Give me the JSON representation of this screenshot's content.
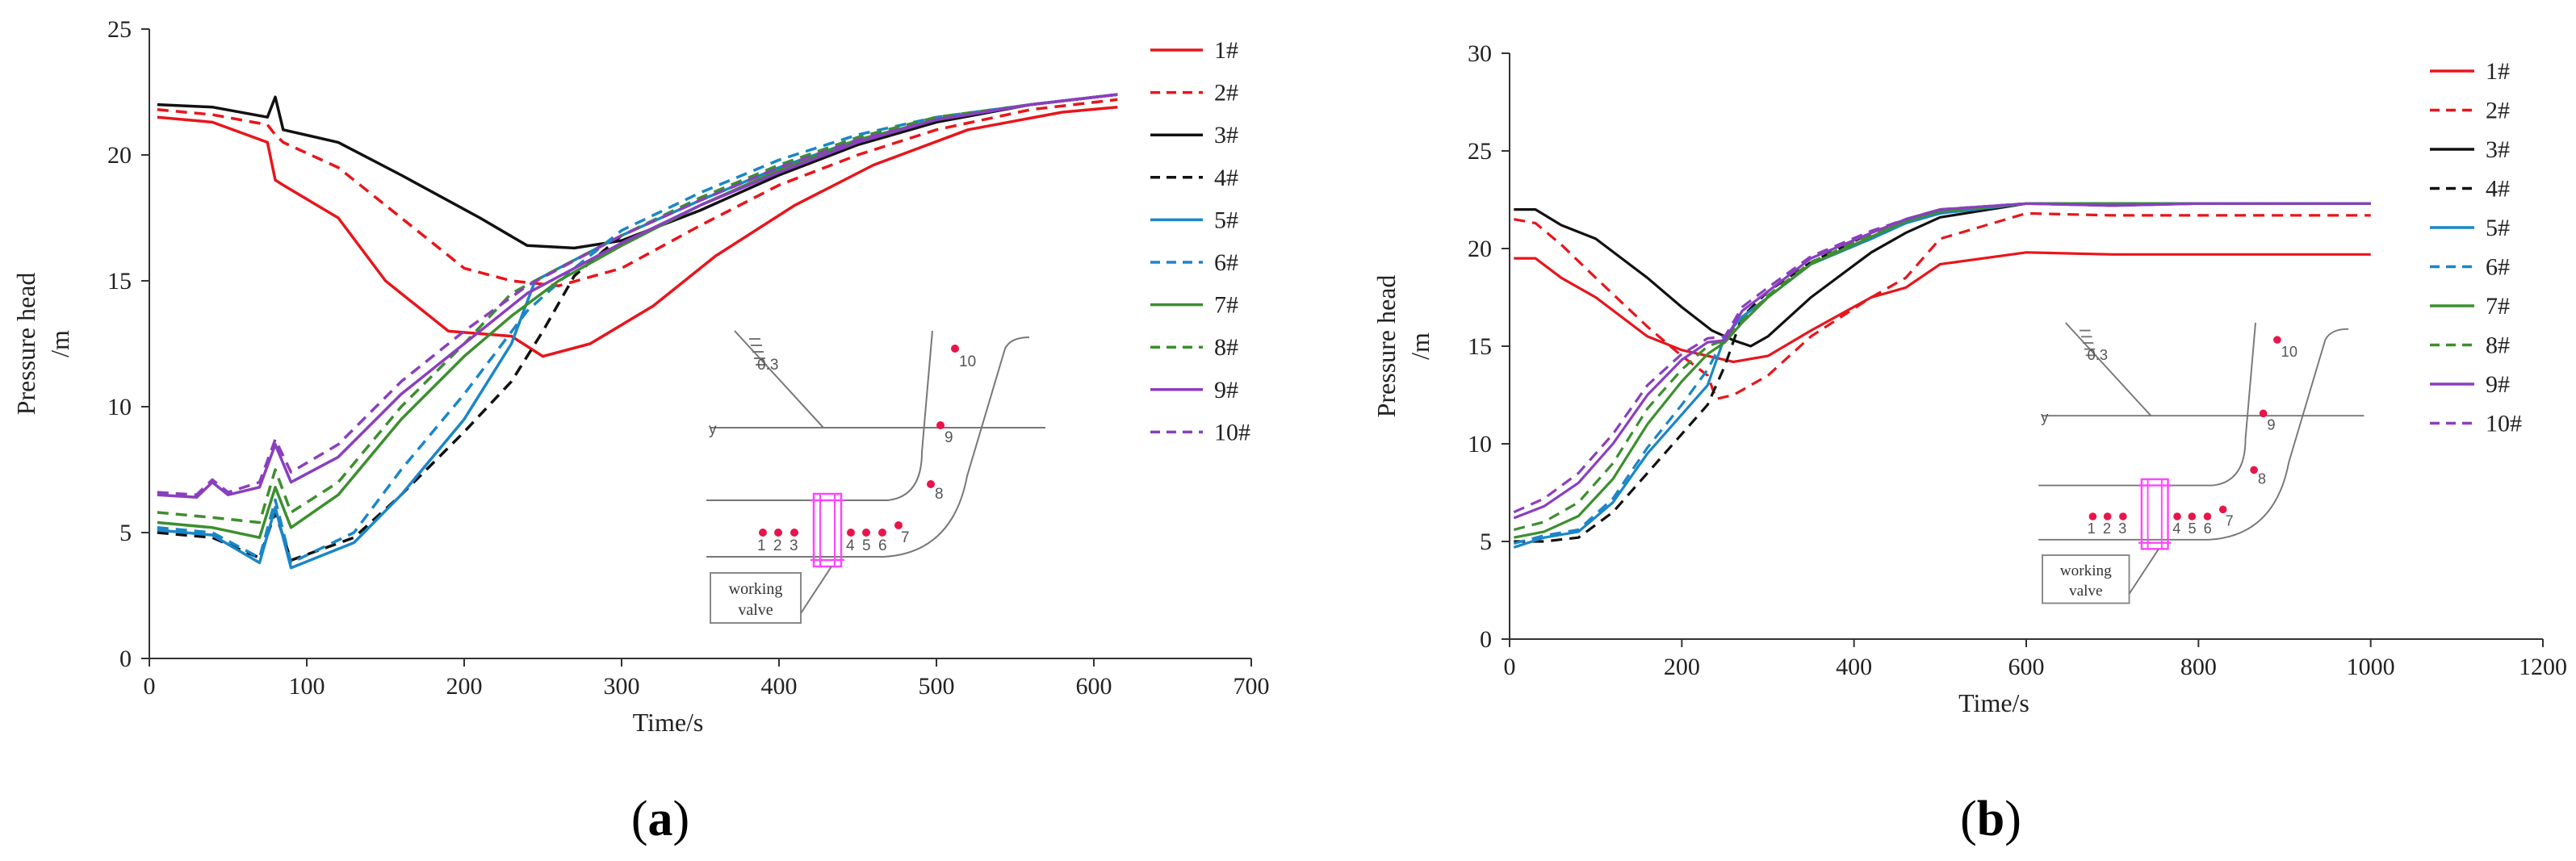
{
  "colors": {
    "red": "#e8151b",
    "black": "#111111",
    "blue": "#1a86c8",
    "green": "#3c8f2e",
    "purple": "#8a3fbf",
    "marker": "#e8154a",
    "valve": "#ff44ff"
  },
  "chart_data": [
    {
      "type": "line",
      "caption_paren_open": "(",
      "caption_letter": "a",
      "caption_paren_close": ")",
      "xlabel": "Time/s",
      "ylabel": "Pressure head /m",
      "ylabel_line1": "Pressure head",
      "ylabel_line2": "/m",
      "xlim": [
        0,
        700
      ],
      "ylim": [
        0,
        25
      ],
      "xticks": [
        0,
        100,
        200,
        300,
        400,
        500,
        600,
        700
      ],
      "yticks": [
        0,
        5,
        10,
        15,
        20,
        25
      ],
      "legend_position": "right",
      "series": [
        {
          "name": "1#",
          "color": "red",
          "dash": "solid",
          "x": [
            5,
            40,
            75,
            80,
            85,
            120,
            150,
            190,
            230,
            250,
            280,
            320,
            360,
            410,
            460,
            520,
            580,
            615
          ],
          "y": [
            21.5,
            21.3,
            20.5,
            19,
            18.8,
            17.5,
            15,
            13,
            12.8,
            12,
            12.5,
            14,
            16,
            18,
            19.6,
            21,
            21.7,
            21.9
          ]
        },
        {
          "name": "2#",
          "color": "red",
          "dash": "dash",
          "x": [
            5,
            40,
            75,
            80,
            85,
            120,
            160,
            200,
            230,
            260,
            300,
            350,
            400,
            450,
            500,
            560,
            615
          ],
          "y": [
            21.8,
            21.6,
            21.2,
            20.8,
            20.5,
            19.5,
            17.5,
            15.5,
            15,
            14.8,
            15.5,
            17.2,
            18.8,
            20,
            21,
            21.8,
            22.2
          ]
        },
        {
          "name": "3#",
          "color": "black",
          "dash": "solid",
          "x": [
            5,
            40,
            75,
            80,
            85,
            120,
            160,
            210,
            240,
            270,
            300,
            350,
            400,
            450,
            500,
            560,
            615
          ],
          "y": [
            22,
            21.9,
            21.5,
            22.3,
            21,
            20.5,
            19.2,
            17.5,
            16.4,
            16.3,
            16.6,
            17.8,
            19.2,
            20.4,
            21.3,
            22,
            22.4
          ]
        },
        {
          "name": "4#",
          "color": "black",
          "dash": "dash",
          "x": [
            5,
            40,
            70,
            80,
            90,
            130,
            160,
            200,
            230,
            250,
            270,
            300,
            350,
            400,
            450,
            500,
            560,
            615
          ],
          "y": [
            5,
            4.8,
            4,
            5.8,
            3.9,
            4.8,
            6.5,
            9,
            11,
            13,
            15.2,
            16.8,
            18.2,
            19.5,
            20.6,
            21.4,
            22,
            22.4
          ]
        },
        {
          "name": "5#",
          "color": "blue",
          "dash": "solid",
          "x": [
            5,
            40,
            70,
            80,
            90,
            130,
            160,
            200,
            230,
            245,
            260,
            300,
            350,
            400,
            450,
            500,
            560,
            615
          ],
          "y": [
            5.1,
            4.9,
            3.8,
            6,
            3.6,
            4.6,
            6.5,
            9.5,
            12.5,
            15,
            15.5,
            16.8,
            18.2,
            19.5,
            20.6,
            21.4,
            22,
            22.4
          ]
        },
        {
          "name": "6#",
          "color": "blue",
          "dash": "dash",
          "x": [
            5,
            40,
            70,
            80,
            90,
            130,
            160,
            200,
            240,
            270,
            300,
            350,
            400,
            450,
            500,
            560,
            615
          ],
          "y": [
            5.2,
            5,
            4,
            6.3,
            3.8,
            5,
            7.5,
            10.5,
            13.8,
            15.5,
            17,
            18.5,
            19.8,
            20.8,
            21.5,
            22,
            22.4
          ]
        },
        {
          "name": "7#",
          "color": "green",
          "dash": "solid",
          "x": [
            5,
            40,
            70,
            80,
            90,
            120,
            160,
            200,
            230,
            260,
            300,
            350,
            400,
            450,
            500,
            560,
            615
          ],
          "y": [
            5.4,
            5.2,
            4.8,
            6.8,
            5.2,
            6.5,
            9.5,
            12,
            13.6,
            15,
            16.4,
            18,
            19.4,
            20.6,
            21.4,
            22,
            22.4
          ]
        },
        {
          "name": "8#",
          "color": "green",
          "dash": "dash",
          "x": [
            5,
            40,
            70,
            80,
            90,
            120,
            160,
            200,
            230,
            260,
            300,
            350,
            400,
            450,
            500,
            560,
            615
          ],
          "y": [
            5.8,
            5.6,
            5.4,
            7.5,
            5.8,
            7,
            10,
            12.5,
            14.5,
            15.5,
            16.8,
            18.3,
            19.6,
            20.7,
            21.5,
            22,
            22.4
          ]
        },
        {
          "name": "9#",
          "color": "purple",
          "dash": "solid",
          "x": [
            5,
            30,
            40,
            50,
            70,
            80,
            90,
            120,
            160,
            200,
            240,
            270,
            300,
            350,
            400,
            450,
            500,
            560,
            615
          ],
          "y": [
            6.5,
            6.4,
            7,
            6.5,
            6.8,
            8.5,
            7,
            8,
            10.5,
            12.5,
            14.5,
            15.5,
            16.5,
            18,
            19.3,
            20.5,
            21.4,
            22,
            22.4
          ]
        },
        {
          "name": "10#",
          "color": "purple",
          "dash": "dash",
          "x": [
            5,
            30,
            40,
            50,
            70,
            80,
            90,
            120,
            160,
            200,
            240,
            270,
            300,
            350,
            400,
            450,
            500,
            560,
            615
          ],
          "y": [
            6.6,
            6.5,
            7.1,
            6.6,
            7,
            8.7,
            7.4,
            8.5,
            11,
            13,
            14.8,
            15.8,
            16.8,
            18.2,
            19.5,
            20.6,
            21.4,
            22,
            22.4
          ]
        }
      ],
      "inset": {
        "slope_label": "0.3",
        "axis_mark": "y",
        "point_labels": [
          "1",
          "2",
          "3",
          "4",
          "5",
          "6",
          "7",
          "8",
          "9",
          "10"
        ],
        "callout_line1": "working",
        "callout_line2": "valve"
      }
    },
    {
      "type": "line",
      "caption_paren_open": "(",
      "caption_letter": "b",
      "caption_paren_close": ")",
      "xlabel": "Time/s",
      "ylabel": "Pressure head /m",
      "ylabel_line1": "Pressure head",
      "ylabel_line2": "/m",
      "xlim": [
        0,
        1200
      ],
      "ylim": [
        0,
        30
      ],
      "xticks": [
        0,
        200,
        400,
        600,
        800,
        1000,
        1200
      ],
      "yticks": [
        0,
        5,
        10,
        15,
        20,
        25,
        30
      ],
      "legend_position": "right",
      "series": [
        {
          "name": "1#",
          "color": "red",
          "dash": "solid",
          "x": [
            5,
            30,
            60,
            100,
            160,
            200,
            230,
            260,
            300,
            350,
            420,
            460,
            500,
            600,
            700,
            800,
            900,
            1000
          ],
          "y": [
            19.5,
            19.5,
            18.5,
            17.5,
            15.5,
            14.8,
            14.5,
            14.2,
            14.5,
            15.8,
            17.5,
            18,
            19.2,
            19.8,
            19.7,
            19.7,
            19.7,
            19.7
          ]
        },
        {
          "name": "2#",
          "color": "red",
          "dash": "dash",
          "x": [
            5,
            30,
            60,
            100,
            160,
            200,
            230,
            240,
            260,
            300,
            350,
            420,
            460,
            500,
            600,
            700,
            800,
            900,
            1000
          ],
          "y": [
            21.5,
            21.3,
            20.2,
            18.5,
            16,
            14.5,
            13.5,
            12.3,
            12.5,
            13.5,
            15.5,
            17.5,
            18.5,
            20.5,
            21.8,
            21.7,
            21.7,
            21.7,
            21.7
          ]
        },
        {
          "name": "3#",
          "color": "black",
          "dash": "solid",
          "x": [
            5,
            30,
            60,
            100,
            160,
            200,
            235,
            260,
            280,
            300,
            350,
            420,
            460,
            500,
            600,
            700,
            800,
            900,
            1000
          ],
          "y": [
            22,
            22,
            21.2,
            20.5,
            18.5,
            17,
            15.8,
            15.3,
            15,
            15.5,
            17.5,
            19.8,
            20.8,
            21.6,
            22.3,
            22.3,
            22.3,
            22.3,
            22.3
          ]
        },
        {
          "name": "4#",
          "color": "black",
          "dash": "dash",
          "x": [
            5,
            40,
            80,
            120,
            160,
            200,
            230,
            250,
            270,
            300,
            350,
            420,
            460,
            500,
            600,
            700,
            800,
            900,
            1000
          ],
          "y": [
            5,
            5,
            5.2,
            6.5,
            8.5,
            10.5,
            12,
            14,
            16.5,
            17.8,
            19.3,
            20.8,
            21.5,
            22,
            22.3,
            22.3,
            22.3,
            22.3,
            22.3
          ]
        },
        {
          "name": "5#",
          "color": "blue",
          "dash": "solid",
          "x": [
            5,
            40,
            80,
            120,
            160,
            200,
            230,
            250,
            270,
            300,
            350,
            420,
            460,
            500,
            600,
            700,
            800,
            900,
            1000
          ],
          "y": [
            4.7,
            5.2,
            5.5,
            7,
            9.5,
            11.5,
            13,
            15.5,
            16.5,
            17.5,
            19.2,
            20.5,
            21.3,
            21.8,
            22.3,
            22.3,
            22.3,
            22.3,
            22.3
          ]
        },
        {
          "name": "6#",
          "color": "blue",
          "dash": "dash",
          "x": [
            5,
            40,
            80,
            120,
            160,
            200,
            230,
            250,
            270,
            300,
            350,
            420,
            460,
            500,
            600,
            700,
            800,
            900,
            1000
          ],
          "y": [
            4.9,
            5.3,
            5.6,
            7.2,
            9.8,
            12,
            13.8,
            15.5,
            16.5,
            17.5,
            19.2,
            20.5,
            21.3,
            21.8,
            22.3,
            22.3,
            22.3,
            22.3,
            22.3
          ]
        },
        {
          "name": "7#",
          "color": "green",
          "dash": "solid",
          "x": [
            5,
            40,
            80,
            120,
            160,
            200,
            230,
            250,
            270,
            300,
            350,
            420,
            460,
            500,
            600,
            700,
            800,
            900,
            1000
          ],
          "y": [
            5.2,
            5.5,
            6.3,
            8.2,
            11,
            13.2,
            14.6,
            15.2,
            16.2,
            17.5,
            19.2,
            20.6,
            21.4,
            21.9,
            22.3,
            22.3,
            22.3,
            22.3,
            22.3
          ]
        },
        {
          "name": "8#",
          "color": "green",
          "dash": "dash",
          "x": [
            5,
            40,
            80,
            120,
            160,
            200,
            230,
            250,
            270,
            300,
            350,
            420,
            460,
            500,
            600,
            700,
            800,
            900,
            1000
          ],
          "y": [
            5.6,
            6,
            7,
            9,
            11.8,
            13.8,
            15,
            15.3,
            16.3,
            17.6,
            19.3,
            20.7,
            21.4,
            21.9,
            22.3,
            22.3,
            22.3,
            22.3,
            22.3
          ]
        },
        {
          "name": "9#",
          "color": "purple",
          "dash": "solid",
          "x": [
            5,
            40,
            80,
            120,
            160,
            200,
            230,
            250,
            270,
            300,
            350,
            420,
            460,
            500,
            600,
            700,
            800,
            900,
            1000
          ],
          "y": [
            6.2,
            6.8,
            8,
            10,
            12.5,
            14.3,
            15.2,
            15.3,
            16.8,
            17.8,
            19.5,
            20.8,
            21.5,
            22,
            22.3,
            22.2,
            22.3,
            22.3,
            22.3
          ]
        },
        {
          "name": "10#",
          "color": "purple",
          "dash": "dash",
          "x": [
            5,
            40,
            80,
            120,
            160,
            200,
            230,
            250,
            270,
            300,
            350,
            420,
            460,
            500,
            600,
            700,
            800,
            900,
            1000
          ],
          "y": [
            6.5,
            7.2,
            8.5,
            10.5,
            13,
            14.6,
            15.4,
            15.5,
            17,
            18,
            19.6,
            20.9,
            21.5,
            22,
            22.3,
            22.2,
            22.3,
            22.3,
            22.3
          ]
        }
      ],
      "inset": {
        "slope_label": "0.3",
        "axis_mark": "y",
        "point_labels": [
          "1",
          "2",
          "3",
          "4",
          "5",
          "6",
          "7",
          "8",
          "9",
          "10"
        ],
        "callout_line1": "working",
        "callout_line2": "valve"
      }
    }
  ]
}
